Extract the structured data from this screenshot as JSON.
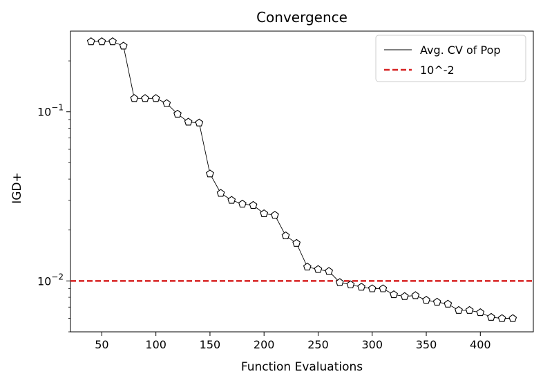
{
  "chart_data": {
    "type": "line",
    "title": "Convergence",
    "xlabel": "Function Evaluations",
    "ylabel": "IGD+",
    "yscale": "log",
    "xlim": [
      21,
      449
    ],
    "ylim": [
      0.005,
      0.3
    ],
    "xticks": [
      50,
      100,
      150,
      200,
      250,
      300,
      350,
      400
    ],
    "yticks_major": [
      {
        "value": 0.1,
        "base": "10",
        "exp": "−1"
      },
      {
        "value": 0.01,
        "base": "10",
        "exp": "−2"
      }
    ],
    "grid": false,
    "legend_position": "top-right",
    "series": [
      {
        "name": "Avg. CV of Pop",
        "color": "#000000",
        "marker": "pentagon",
        "x": [
          40,
          50,
          60,
          70,
          80,
          90,
          100,
          110,
          120,
          130,
          140,
          150,
          160,
          170,
          180,
          190,
          200,
          210,
          220,
          230,
          240,
          250,
          260,
          270,
          280,
          290,
          300,
          310,
          320,
          330,
          340,
          350,
          360,
          370,
          380,
          390,
          400,
          410,
          420,
          430
        ],
        "y": [
          0.26,
          0.26,
          0.26,
          0.245,
          0.12,
          0.12,
          0.12,
          0.112,
          0.097,
          0.087,
          0.086,
          0.043,
          0.033,
          0.03,
          0.0285,
          0.028,
          0.025,
          0.0245,
          0.0185,
          0.0167,
          0.0121,
          0.0117,
          0.0114,
          0.0098,
          0.0095,
          0.0092,
          0.009,
          0.009,
          0.0083,
          0.0081,
          0.0082,
          0.0077,
          0.0075,
          0.0073,
          0.0067,
          0.0067,
          0.0065,
          0.0061,
          0.006,
          0.006
        ]
      }
    ],
    "reference_line": {
      "name": "10^-2",
      "value": 0.01,
      "color": "#d62020",
      "style": "dashed"
    }
  }
}
